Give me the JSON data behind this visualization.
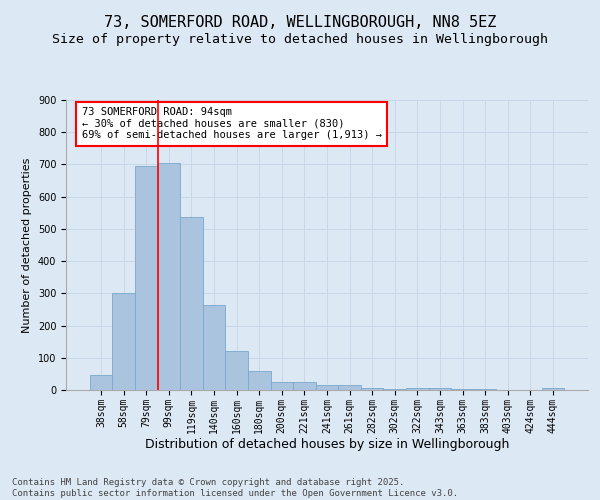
{
  "title": "73, SOMERFORD ROAD, WELLINGBOROUGH, NN8 5EZ",
  "subtitle": "Size of property relative to detached houses in Wellingborough",
  "xlabel": "Distribution of detached houses by size in Wellingborough",
  "ylabel": "Number of detached properties",
  "categories": [
    "38sqm",
    "58sqm",
    "79sqm",
    "99sqm",
    "119sqm",
    "140sqm",
    "160sqm",
    "180sqm",
    "200sqm",
    "221sqm",
    "241sqm",
    "261sqm",
    "282sqm",
    "302sqm",
    "322sqm",
    "343sqm",
    "363sqm",
    "383sqm",
    "403sqm",
    "424sqm",
    "444sqm"
  ],
  "values": [
    46,
    300,
    695,
    706,
    537,
    263,
    121,
    59,
    24,
    26,
    16,
    17,
    7,
    3,
    7,
    7,
    2,
    2,
    1,
    1,
    6
  ],
  "bar_color": "#aac4e0",
  "bar_edge_color": "#7aa8cc",
  "vline_color": "red",
  "vline_x_index": 2.5,
  "annotation_text": "73 SOMERFORD ROAD: 94sqm\n← 30% of detached houses are smaller (830)\n69% of semi-detached houses are larger (1,913) →",
  "annotation_box_color": "white",
  "annotation_box_edge_color": "red",
  "ylim": [
    0,
    900
  ],
  "yticks": [
    0,
    100,
    200,
    300,
    400,
    500,
    600,
    700,
    800,
    900
  ],
  "grid_color": "#c8d8e8",
  "background_color": "#dce8f4",
  "footer": "Contains HM Land Registry data © Crown copyright and database right 2025.\nContains public sector information licensed under the Open Government Licence v3.0.",
  "title_fontsize": 11,
  "subtitle_fontsize": 9.5,
  "xlabel_fontsize": 9,
  "ylabel_fontsize": 8,
  "tick_fontsize": 7,
  "annotation_fontsize": 7.5,
  "footer_fontsize": 6.5
}
